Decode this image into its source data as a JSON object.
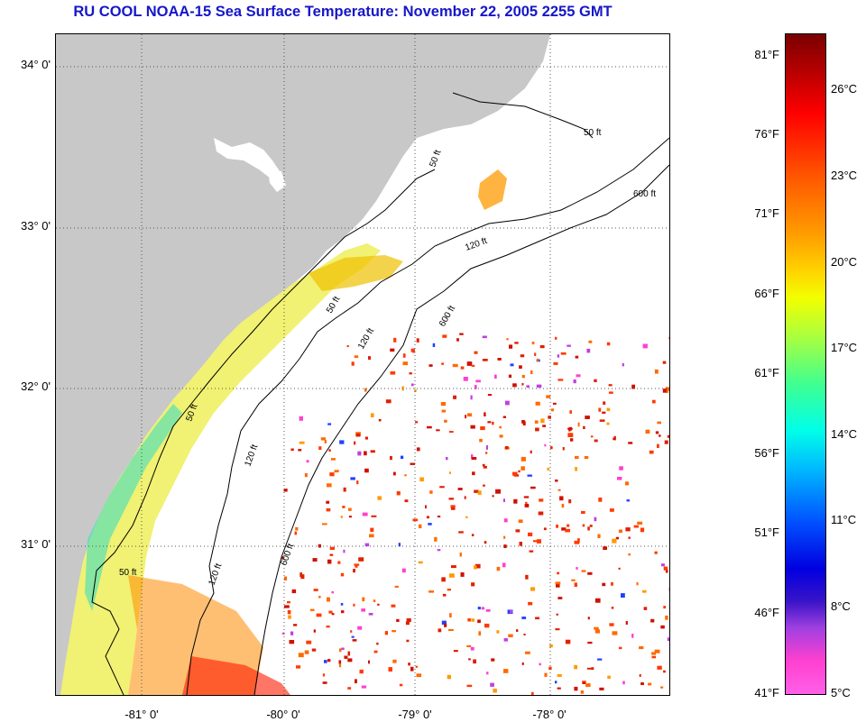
{
  "title": "RU COOL  NOAA-15  Sea Surface Temperature:  November 22, 2005 2255 GMT",
  "colors": {
    "title": "#1616c8",
    "land": "#c8c8c8",
    "grid": "#555555",
    "contour": "#000000"
  },
  "latitude_labels": [
    "34° 0'",
    "33° 0'",
    "32° 0'",
    "31° 0'"
  ],
  "longitude_labels": [
    "-81° 0'",
    "-80° 0'",
    "-79° 0'",
    "-78° 0'"
  ],
  "contour_labels": [
    "50 ft",
    "50 ft",
    "50 ft",
    "50 ft",
    "50 ft",
    "120 ft",
    "120 ft",
    "120 ft",
    "120 ft",
    "600 ft",
    "600 ft",
    "600 ft"
  ],
  "colorbar": {
    "fahrenheit_labels": [
      "81°F",
      "76°F",
      "71°F",
      "66°F",
      "61°F",
      "56°F",
      "51°F",
      "46°F",
      "41°F"
    ],
    "celsius_labels": [
      "26°C",
      "23°C",
      "20°C",
      "17°C",
      "14°C",
      "11°C",
      "8°C",
      "5°C"
    ]
  }
}
